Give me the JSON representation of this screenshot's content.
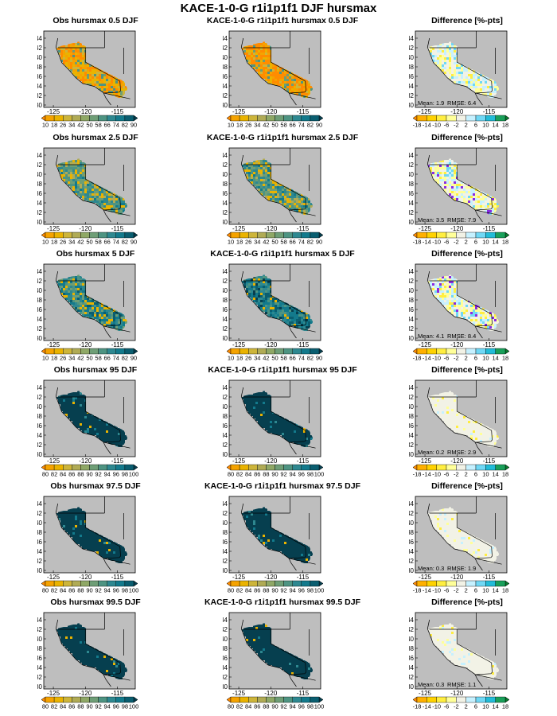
{
  "title": "KACE-1-0-G r1i1p1f1 DJF hursmax",
  "map_axes": {
    "lat_ticks": [
      "44",
      "42",
      "40",
      "38",
      "36",
      "34",
      "32",
      "30"
    ],
    "lon_ticks": [
      "-125",
      "-120",
      "-115"
    ]
  },
  "colorbars": {
    "low": {
      "labels": [
        "10",
        "18",
        "26",
        "34",
        "42",
        "50",
        "58",
        "66",
        "74",
        "82",
        "90"
      ],
      "colors": [
        "#ff8c00",
        "#f5a300",
        "#eab300",
        "#cdb53a",
        "#b0ab55",
        "#8fa866",
        "#6e9e76",
        "#4e9482",
        "#2e8890",
        "#137a8c",
        "#0a5e70",
        "#063f4f"
      ]
    },
    "high": {
      "labels": [
        "80",
        "82",
        "84",
        "86",
        "88",
        "90",
        "92",
        "94",
        "96",
        "98",
        "100"
      ],
      "colors": [
        "#ff8c00",
        "#f5a300",
        "#eab300",
        "#cdb53a",
        "#b0ab55",
        "#8fa866",
        "#6e9e76",
        "#4e9482",
        "#2e8890",
        "#137a8c",
        "#0a5e70",
        "#063f4f"
      ]
    },
    "diff": {
      "labels": [
        "-18",
        "-14",
        "-10",
        "-6",
        "-2",
        "2",
        "6",
        "10",
        "14",
        "18"
      ],
      "colors": [
        "#ff8c00",
        "#ffb000",
        "#ffd200",
        "#ffee40",
        "#ffff99",
        "#f2f2e6",
        "#c6f1ff",
        "#70d8f5",
        "#22bcd8",
        "#19a05a",
        "#0a7a2e"
      ]
    }
  },
  "rows": [
    {
      "obs_title": "Obs hursmax 0.5 DJF",
      "model_title": "KACE-1-0-G r1i1p1f1 hursmax 0.5 DJF",
      "diff_title": "Difference [%-pts]",
      "mean_label": "Mean: 1.9",
      "rmse_label": "RMSE: 6.4",
      "scale": "low",
      "obs_style": "orange_mix",
      "model_style": "orange_more",
      "diff_style": "mostly_neutral"
    },
    {
      "obs_title": "Obs hursmax 2.5 DJF",
      "model_title": "KACE-1-0-G r1i1p1f1 hursmax 2.5 DJF",
      "diff_title": "Difference [%-pts]",
      "mean_label": "Mean: 3.5",
      "rmse_label": "RMSE: 7.9",
      "scale": "low",
      "obs_style": "teal_mix",
      "model_style": "teal_mix",
      "diff_style": "mixed_purple"
    },
    {
      "obs_title": "Obs hursmax 5 DJF",
      "model_title": "KACE-1-0-G r1i1p1f1 hursmax 5 DJF",
      "diff_title": "Difference [%-pts]",
      "mean_label": "Mean: 4.1",
      "rmse_label": "RMSE: 8.4",
      "scale": "low",
      "obs_style": "teal_more",
      "model_style": "teal_dark",
      "diff_style": "mixed_purple"
    },
    {
      "obs_title": "Obs hursmax 95 DJF",
      "model_title": "KACE-1-0-G r1i1p1f1 hursmax 95 DJF",
      "diff_title": "Difference [%-pts]",
      "mean_label": "Mean: 0.2",
      "rmse_label": "RMSE: 2.9",
      "scale": "high",
      "obs_style": "dark",
      "model_style": "dark",
      "diff_style": "neutral"
    },
    {
      "obs_title": "Obs hursmax 97.5 DJF",
      "model_title": "KACE-1-0-G r1i1p1f1 hursmax 97.5 DJF",
      "diff_title": "Difference [%-pts]",
      "mean_label": "Mean: 0.3",
      "rmse_label": "RMSE: 1.9",
      "scale": "high",
      "obs_style": "dark",
      "model_style": "dark",
      "diff_style": "neutral"
    },
    {
      "obs_title": "Obs hursmax 99.5 DJF",
      "model_title": "KACE-1-0-G r1i1p1f1 hursmax 99.5 DJF",
      "diff_title": "Difference [%-pts]",
      "mean_label": "Mean: 0.3",
      "rmse_label": "RMSE: 1.1",
      "scale": "high",
      "obs_style": "dark",
      "model_style": "dark",
      "diff_style": "neutral"
    }
  ]
}
